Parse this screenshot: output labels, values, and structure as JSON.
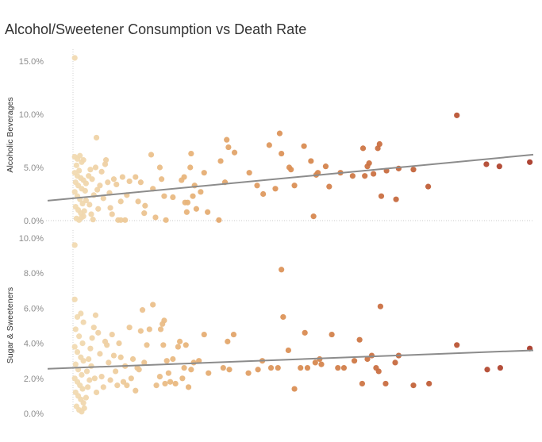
{
  "chart_data": {
    "title": "Alcohol/Sweetener Consumption vs Death Rate",
    "type": "scatter",
    "colors": {
      "color_scale": [
        "#f1dbb3",
        "#e8b47a",
        "#d98c52",
        "#c2623a",
        "#a93a2a"
      ],
      "trend_line": "#8c8c8c",
      "zero_line": "#c8c8c8",
      "x_origin_line": "#d0d0d0"
    },
    "x": {
      "domain": [
        0,
        5.3
      ],
      "ticks_shown": false,
      "label": ""
    },
    "panels": [
      {
        "id": "alcohol",
        "ylabel": "Alcoholic Beverages",
        "ylim": [
          0,
          16
        ],
        "yticks": [
          0,
          5,
          10,
          15
        ],
        "tick_labels": [
          "0.0%",
          "5.0%",
          "10.0%",
          "15.0%"
        ],
        "trend": [
          [
            0.0,
            2.1
          ],
          [
            5.3,
            6.2
          ]
        ],
        "points": [
          [
            0.02,
            15.3
          ],
          [
            0.02,
            6.0
          ],
          [
            0.05,
            5.8
          ],
          [
            0.08,
            6.1
          ],
          [
            0.1,
            5.5
          ],
          [
            0.12,
            5.7
          ],
          [
            0.04,
            5.2
          ],
          [
            0.07,
            4.7
          ],
          [
            0.02,
            4.5
          ],
          [
            0.05,
            4.2
          ],
          [
            0.09,
            4.0
          ],
          [
            0.12,
            3.8
          ],
          [
            0.03,
            3.6
          ],
          [
            0.06,
            3.3
          ],
          [
            0.1,
            3.0
          ],
          [
            0.02,
            2.7
          ],
          [
            0.05,
            2.3
          ],
          [
            0.08,
            2.0
          ],
          [
            0.11,
            1.6
          ],
          [
            0.03,
            1.3
          ],
          [
            0.06,
            1.0
          ],
          [
            0.09,
            0.7
          ],
          [
            0.12,
            0.4
          ],
          [
            0.04,
            0.2
          ],
          [
            0.07,
            0.05
          ],
          [
            0.1,
            0.3
          ],
          [
            0.13,
            0.9
          ],
          [
            0.15,
            1.9
          ],
          [
            0.14,
            2.8
          ],
          [
            0.15,
            3.5
          ],
          [
            0.18,
            4.2
          ],
          [
            0.2,
            4.8
          ],
          [
            0.22,
            3.9
          ],
          [
            0.24,
            2.4
          ],
          [
            0.19,
            1.5
          ],
          [
            0.21,
            0.6
          ],
          [
            0.23,
            0.1
          ],
          [
            0.27,
            7.8
          ],
          [
            0.26,
            5.0
          ],
          [
            0.28,
            2.9
          ],
          [
            0.29,
            1.1
          ],
          [
            0.31,
            3.3
          ],
          [
            0.33,
            4.6
          ],
          [
            0.35,
            2.1
          ],
          [
            0.37,
            5.3
          ],
          [
            0.38,
            5.7
          ],
          [
            0.4,
            3.6
          ],
          [
            0.42,
            2.6
          ],
          [
            0.43,
            1.2
          ],
          [
            0.45,
            0.6
          ],
          [
            0.47,
            3.9
          ],
          [
            0.5,
            3.4
          ],
          [
            0.52,
            0.05
          ],
          [
            0.55,
            0.05
          ],
          [
            0.57,
            4.1
          ],
          [
            0.55,
            1.8
          ],
          [
            0.6,
            0.05
          ],
          [
            0.62,
            2.4
          ],
          [
            0.65,
            3.7
          ],
          [
            0.72,
            4.1
          ],
          [
            0.75,
            1.8
          ],
          [
            0.78,
            3.6
          ],
          [
            0.82,
            0.7
          ],
          [
            0.83,
            1.4
          ],
          [
            0.9,
            6.2
          ],
          [
            0.92,
            3.0
          ],
          [
            0.95,
            0.3
          ],
          [
            1.0,
            5.0
          ],
          [
            1.02,
            3.9
          ],
          [
            1.05,
            2.3
          ],
          [
            1.07,
            0.05
          ],
          [
            1.15,
            2.2
          ],
          [
            1.25,
            3.8
          ],
          [
            1.28,
            4.1
          ],
          [
            1.29,
            1.7
          ],
          [
            1.31,
            0.8
          ],
          [
            1.32,
            1.7
          ],
          [
            1.35,
            5.0
          ],
          [
            1.36,
            6.3
          ],
          [
            1.38,
            2.3
          ],
          [
            1.4,
            3.3
          ],
          [
            1.42,
            1.1
          ],
          [
            1.47,
            2.7
          ],
          [
            1.51,
            4.5
          ],
          [
            1.55,
            0.8
          ],
          [
            1.68,
            0.05
          ],
          [
            1.7,
            5.6
          ],
          [
            1.75,
            3.6
          ],
          [
            1.77,
            7.6
          ],
          [
            1.79,
            6.9
          ],
          [
            1.86,
            6.4
          ],
          [
            2.03,
            4.5
          ],
          [
            2.12,
            3.3
          ],
          [
            2.19,
            2.5
          ],
          [
            2.26,
            7.1
          ],
          [
            2.33,
            3.0
          ],
          [
            2.38,
            8.2
          ],
          [
            2.4,
            6.3
          ],
          [
            2.49,
            5.0
          ],
          [
            2.51,
            4.8
          ],
          [
            2.55,
            3.3
          ],
          [
            2.66,
            7.0
          ],
          [
            2.74,
            5.6
          ],
          [
            2.77,
            0.4
          ],
          [
            2.8,
            4.3
          ],
          [
            2.82,
            4.5
          ],
          [
            2.91,
            5.1
          ],
          [
            2.95,
            3.2
          ],
          [
            3.08,
            4.5
          ],
          [
            3.22,
            4.2
          ],
          [
            3.34,
            6.8
          ],
          [
            3.36,
            4.2
          ],
          [
            3.39,
            5.1
          ],
          [
            3.41,
            5.4
          ],
          [
            3.46,
            4.4
          ],
          [
            3.51,
            6.8
          ],
          [
            3.53,
            7.2
          ],
          [
            3.55,
            2.3
          ],
          [
            3.61,
            4.7
          ],
          [
            3.72,
            2.0
          ],
          [
            3.75,
            4.9
          ],
          [
            3.92,
            4.8
          ],
          [
            4.09,
            3.2
          ],
          [
            4.42,
            9.9
          ],
          [
            4.76,
            5.3
          ],
          [
            4.91,
            5.1
          ],
          [
            5.26,
            5.5
          ]
        ]
      },
      {
        "id": "sugar",
        "ylabel": "Sugar & Sweeteners",
        "ylim": [
          0,
          10
        ],
        "yticks": [
          0,
          2,
          4,
          6,
          8,
          10
        ],
        "tick_labels": [
          "0.0%",
          "2.0%",
          "4.0%",
          "6.0%",
          "8.0%",
          "10.0%"
        ],
        "trend": [
          [
            0.0,
            2.6
          ],
          [
            5.3,
            3.6
          ]
        ],
        "points": [
          [
            0.02,
            9.6
          ],
          [
            0.02,
            6.5
          ],
          [
            0.05,
            5.5
          ],
          [
            0.09,
            5.7
          ],
          [
            0.12,
            5.2
          ],
          [
            0.03,
            4.8
          ],
          [
            0.07,
            4.4
          ],
          [
            0.11,
            4.0
          ],
          [
            0.02,
            3.8
          ],
          [
            0.05,
            3.5
          ],
          [
            0.09,
            3.2
          ],
          [
            0.12,
            3.0
          ],
          [
            0.03,
            2.8
          ],
          [
            0.06,
            2.5
          ],
          [
            0.1,
            2.2
          ],
          [
            0.02,
            2.0
          ],
          [
            0.05,
            1.8
          ],
          [
            0.08,
            1.6
          ],
          [
            0.11,
            1.4
          ],
          [
            0.03,
            1.2
          ],
          [
            0.06,
            1.0
          ],
          [
            0.09,
            0.8
          ],
          [
            0.12,
            0.6
          ],
          [
            0.04,
            0.4
          ],
          [
            0.07,
            0.2
          ],
          [
            0.1,
            0.1
          ],
          [
            0.13,
            0.3
          ],
          [
            0.15,
            0.9
          ],
          [
            0.17,
            1.5
          ],
          [
            0.16,
            2.4
          ],
          [
            0.18,
            3.1
          ],
          [
            0.2,
            3.7
          ],
          [
            0.22,
            4.3
          ],
          [
            0.24,
            4.9
          ],
          [
            0.26,
            5.6
          ],
          [
            0.19,
            1.9
          ],
          [
            0.21,
            2.7
          ],
          [
            0.25,
            2.0
          ],
          [
            0.27,
            1.2
          ],
          [
            0.29,
            4.6
          ],
          [
            0.31,
            3.4
          ],
          [
            0.33,
            2.1
          ],
          [
            0.35,
            1.5
          ],
          [
            0.37,
            4.1
          ],
          [
            0.39,
            3.9
          ],
          [
            0.41,
            2.9
          ],
          [
            0.43,
            1.9
          ],
          [
            0.45,
            4.5
          ],
          [
            0.47,
            3.3
          ],
          [
            0.49,
            2.4
          ],
          [
            0.51,
            1.6
          ],
          [
            0.53,
            4.0
          ],
          [
            0.55,
            3.2
          ],
          [
            0.58,
            1.8
          ],
          [
            0.6,
            2.7
          ],
          [
            0.62,
            1.6
          ],
          [
            0.65,
            4.9
          ],
          [
            0.67,
            2.0
          ],
          [
            0.69,
            3.1
          ],
          [
            0.72,
            1.3
          ],
          [
            0.74,
            2.6
          ],
          [
            0.76,
            2.5
          ],
          [
            0.78,
            4.7
          ],
          [
            0.8,
            5.9
          ],
          [
            0.82,
            2.9
          ],
          [
            0.85,
            3.9
          ],
          [
            0.88,
            4.8
          ],
          [
            0.92,
            6.2
          ],
          [
            0.96,
            1.6
          ],
          [
            1.0,
            2.1
          ],
          [
            1.01,
            4.8
          ],
          [
            1.03,
            5.1
          ],
          [
            1.04,
            3.9
          ],
          [
            1.05,
            5.3
          ],
          [
            1.06,
            1.7
          ],
          [
            1.08,
            3.0
          ],
          [
            1.1,
            2.3
          ],
          [
            1.12,
            1.8
          ],
          [
            1.15,
            3.1
          ],
          [
            1.18,
            1.7
          ],
          [
            1.21,
            3.8
          ],
          [
            1.23,
            4.1
          ],
          [
            1.26,
            2.0
          ],
          [
            1.28,
            2.6
          ],
          [
            1.3,
            3.9
          ],
          [
            1.33,
            1.5
          ],
          [
            1.36,
            2.5
          ],
          [
            1.39,
            2.9
          ],
          [
            1.45,
            3.0
          ],
          [
            1.51,
            4.5
          ],
          [
            1.56,
            2.3
          ],
          [
            1.73,
            2.6
          ],
          [
            1.78,
            4.1
          ],
          [
            1.8,
            2.5
          ],
          [
            1.85,
            4.5
          ],
          [
            2.02,
            2.3
          ],
          [
            2.13,
            2.5
          ],
          [
            2.18,
            3.0
          ],
          [
            2.28,
            2.6
          ],
          [
            2.36,
            2.6
          ],
          [
            2.4,
            8.2
          ],
          [
            2.42,
            5.5
          ],
          [
            2.48,
            3.6
          ],
          [
            2.55,
            1.4
          ],
          [
            2.62,
            2.6
          ],
          [
            2.67,
            4.6
          ],
          [
            2.7,
            2.6
          ],
          [
            2.79,
            2.9
          ],
          [
            2.84,
            3.1
          ],
          [
            2.86,
            2.8
          ],
          [
            2.98,
            4.5
          ],
          [
            3.05,
            2.6
          ],
          [
            3.12,
            2.6
          ],
          [
            3.24,
            3.0
          ],
          [
            3.3,
            4.2
          ],
          [
            3.33,
            1.7
          ],
          [
            3.39,
            3.1
          ],
          [
            3.44,
            3.3
          ],
          [
            3.49,
            2.6
          ],
          [
            3.52,
            2.4
          ],
          [
            3.54,
            6.1
          ],
          [
            3.6,
            1.7
          ],
          [
            3.71,
            2.9
          ],
          [
            3.75,
            3.3
          ],
          [
            3.92,
            1.6
          ],
          [
            4.1,
            1.7
          ],
          [
            4.42,
            3.9
          ],
          [
            4.77,
            2.5
          ],
          [
            4.92,
            2.6
          ],
          [
            5.26,
            3.7
          ]
        ]
      }
    ]
  }
}
